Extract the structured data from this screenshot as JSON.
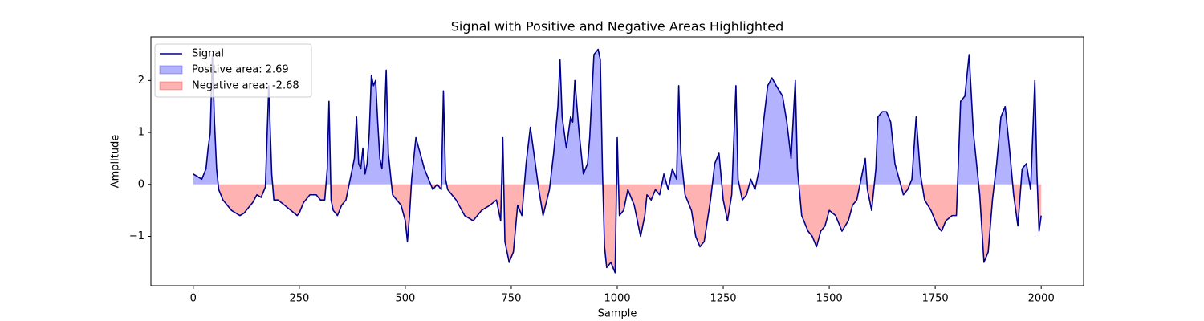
{
  "chart_data": {
    "type": "line",
    "title": "Signal with Positive and Negative Areas Highlighted",
    "x_label": "Sample",
    "y_label": "Amplitude",
    "xlim": [
      -100,
      2100
    ],
    "ylim": [
      -1.95,
      2.84
    ],
    "xticks": [
      0,
      250,
      500,
      750,
      1000,
      1250,
      1500,
      1750,
      2000
    ],
    "yticks": [
      {
        "value": -1,
        "label": "−1"
      },
      0,
      1,
      2
    ],
    "grid": false,
    "legend": "upper left",
    "x": [
      0,
      10,
      20,
      30,
      35,
      40,
      45,
      50,
      55,
      60,
      70,
      80,
      90,
      100,
      110,
      120,
      130,
      140,
      150,
      160,
      170,
      178,
      185,
      190,
      200,
      215,
      230,
      245,
      250,
      260,
      275,
      290,
      300,
      310,
      316,
      320,
      325,
      330,
      340,
      350,
      360,
      370,
      380,
      385,
      390,
      395,
      400,
      405,
      410,
      415,
      420,
      425,
      430,
      435,
      440,
      445,
      450,
      455,
      460,
      465,
      470,
      480,
      490,
      500,
      505,
      510,
      515,
      520,
      525,
      535,
      545,
      555,
      565,
      575,
      585,
      590,
      595,
      600,
      620,
      640,
      660,
      680,
      700,
      715,
      725,
      730,
      735,
      745,
      755,
      765,
      775,
      785,
      795,
      805,
      815,
      825,
      840,
      850,
      860,
      865,
      870,
      880,
      890,
      895,
      900,
      910,
      920,
      930,
      935,
      945,
      955,
      960,
      965,
      970,
      975,
      985,
      995,
      1000,
      1005,
      1015,
      1025,
      1040,
      1055,
      1065,
      1070,
      1080,
      1090,
      1100,
      1110,
      1120,
      1130,
      1140,
      1145,
      1150,
      1160,
      1175,
      1185,
      1195,
      1205,
      1220,
      1230,
      1240,
      1250,
      1260,
      1270,
      1280,
      1285,
      1295,
      1305,
      1315,
      1325,
      1335,
      1345,
      1355,
      1365,
      1375,
      1390,
      1400,
      1410,
      1420,
      1425,
      1435,
      1450,
      1460,
      1470,
      1480,
      1490,
      1500,
      1515,
      1530,
      1545,
      1555,
      1565,
      1575,
      1585,
      1590,
      1600,
      1610,
      1615,
      1625,
      1635,
      1645,
      1655,
      1665,
      1675,
      1685,
      1695,
      1705,
      1715,
      1725,
      1740,
      1755,
      1765,
      1775,
      1790,
      1800,
      1810,
      1820,
      1830,
      1840,
      1850,
      1855,
      1865,
      1875,
      1885,
      1895,
      1905,
      1915,
      1925,
      1935,
      1945,
      1955,
      1965,
      1975,
      1985,
      1990,
      1995,
      2000
    ],
    "series": [
      {
        "name": "Signal",
        "color": "#00008b",
        "values": [
          0.2,
          0.15,
          0.1,
          0.3,
          0.7,
          1.0,
          2.5,
          1.2,
          0.3,
          -0.1,
          -0.3,
          -0.4,
          -0.5,
          -0.55,
          -0.6,
          -0.55,
          -0.45,
          -0.35,
          -0.2,
          -0.25,
          -0.05,
          1.9,
          0.2,
          -0.3,
          -0.3,
          -0.4,
          -0.5,
          -0.6,
          -0.55,
          -0.35,
          -0.2,
          -0.2,
          -0.3,
          -0.3,
          0.3,
          1.6,
          -0.3,
          -0.5,
          -0.6,
          -0.4,
          -0.3,
          0.1,
          0.5,
          1.3,
          0.4,
          0.3,
          0.7,
          0.2,
          0.4,
          1.0,
          2.1,
          1.9,
          2.0,
          1.2,
          0.5,
          0.3,
          1.0,
          2.2,
          0.6,
          0.2,
          -0.2,
          -0.3,
          -0.4,
          -0.7,
          -1.1,
          -0.6,
          0.1,
          0.5,
          0.9,
          0.6,
          0.3,
          0.1,
          -0.1,
          0,
          -0.1,
          1.8,
          0.1,
          -0.1,
          -0.3,
          -0.6,
          -0.7,
          -0.5,
          -0.4,
          -0.3,
          -0.7,
          0.9,
          -1.1,
          -1.5,
          -1.3,
          -0.4,
          -0.6,
          0.4,
          1.1,
          0.5,
          -0.1,
          -0.6,
          -0.1,
          0.6,
          1.5,
          2.4,
          1.3,
          0.7,
          1.3,
          1.2,
          2.0,
          1.0,
          0.2,
          0.4,
          0.9,
          2.5,
          2.6,
          2.4,
          0.3,
          -1.2,
          -1.6,
          -1.5,
          -1.7,
          0.9,
          -0.6,
          -0.5,
          -0.1,
          -0.4,
          -1.0,
          -0.6,
          -0.2,
          -0.3,
          -0.1,
          -0.2,
          0.2,
          -0.1,
          0.3,
          0.1,
          1.9,
          0.6,
          -0.2,
          -0.5,
          -1.0,
          -1.2,
          -1.1,
          -0.3,
          0.4,
          0.6,
          -0.3,
          -0.7,
          -0.2,
          1.9,
          0.1,
          -0.3,
          -0.2,
          0.1,
          -0.1,
          0.3,
          1.2,
          1.9,
          2.05,
          1.9,
          1.7,
          1.2,
          0.5,
          2.0,
          0.3,
          -0.6,
          -0.9,
          -1.0,
          -1.2,
          -0.9,
          -0.8,
          -0.5,
          -0.6,
          -0.9,
          -0.7,
          -0.4,
          -0.3,
          0.1,
          0.5,
          -0.1,
          -0.5,
          0.3,
          1.3,
          1.4,
          1.4,
          1.2,
          0.4,
          0.1,
          -0.2,
          -0.1,
          0.1,
          1.3,
          0.2,
          -0.3,
          -0.5,
          -0.8,
          -0.9,
          -0.7,
          -0.6,
          -0.6,
          1.6,
          1.7,
          2.5,
          1.0,
          0.2,
          -0.2,
          -1.5,
          -1.3,
          -0.3,
          0.4,
          1.3,
          1.5,
          0.7,
          -0.2,
          -0.8,
          0.3,
          0.4,
          -0.1,
          2.0,
          0.2,
          -0.9,
          -0.6
        ]
      }
    ],
    "fills": [
      {
        "name": "Positive area: 2.69",
        "color": "#0000ff",
        "alpha": 0.3,
        "where": "above"
      },
      {
        "name": "Negative area: -2.68",
        "color": "#ff0000",
        "alpha": 0.3,
        "where": "below"
      }
    ]
  }
}
